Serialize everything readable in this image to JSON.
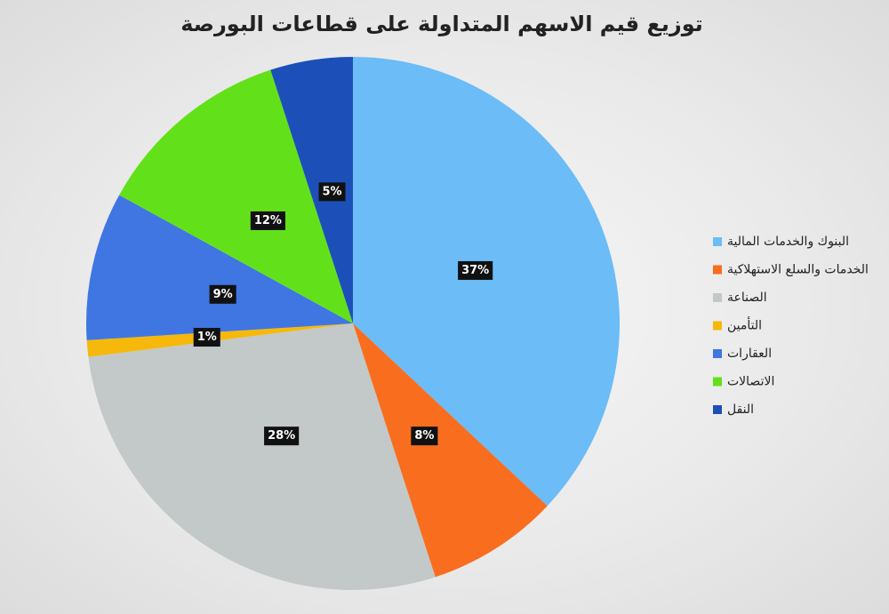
{
  "chart_data": {
    "type": "pie",
    "title": "توزيع قيم الاسهم المتداولة على قطاعات البورصة",
    "categories": [
      "البنوك والخدمات المالية",
      "الخدمات والسلع الاستهلاكية",
      "الصناعة",
      "التأمين",
      "العقارات",
      "الاتصالات",
      "النقل"
    ],
    "values": [
      37,
      8,
      28,
      1,
      9,
      12,
      5
    ],
    "value_labels": [
      "37%",
      "8%",
      "28%",
      "1%",
      "9%",
      "12%",
      "5%"
    ],
    "colors": [
      "#6bbcf7",
      "#f96d1f",
      "#c2c9c8",
      "#f7b80c",
      "#3f76e2",
      "#62e11a",
      "#1c50b8"
    ]
  }
}
